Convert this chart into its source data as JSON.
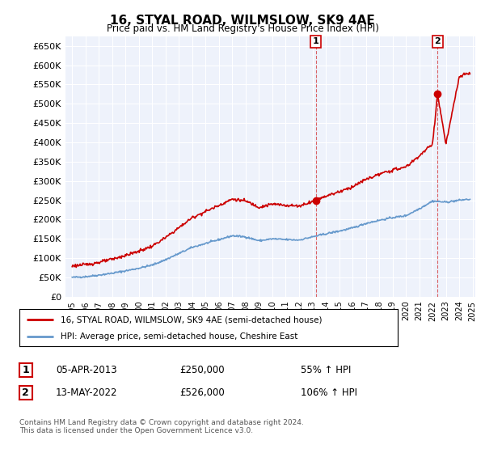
{
  "title": "16, STYAL ROAD, WILMSLOW, SK9 4AE",
  "subtitle": "Price paid vs. HM Land Registry's House Price Index (HPI)",
  "red_label": "16, STYAL ROAD, WILMSLOW, SK9 4AE (semi-detached house)",
  "blue_label": "HPI: Average price, semi-detached house, Cheshire East",
  "annotation1": {
    "number": "1",
    "date": "05-APR-2013",
    "price": "£250,000",
    "pct": "55% ↑ HPI"
  },
  "annotation2": {
    "number": "2",
    "date": "13-MAY-2022",
    "price": "£526,000",
    "pct": "106% ↑ HPI"
  },
  "footnote": "Contains HM Land Registry data © Crown copyright and database right 2024.\nThis data is licensed under the Open Government Licence v3.0.",
  "ylim": [
    0,
    675000
  ],
  "yticks": [
    0,
    50000,
    100000,
    150000,
    200000,
    250000,
    300000,
    350000,
    400000,
    450000,
    500000,
    550000,
    600000,
    650000
  ],
  "background_color": "#eef2fb",
  "red_color": "#cc0000",
  "blue_color": "#6699cc",
  "marker1_x": 2013.25,
  "marker1_y": 250000,
  "marker2_x": 2022.37,
  "marker2_y": 526000,
  "vline1_x": 2013.25,
  "vline2_x": 2022.37,
  "xmin": 1994.5,
  "xmax": 2025.2
}
